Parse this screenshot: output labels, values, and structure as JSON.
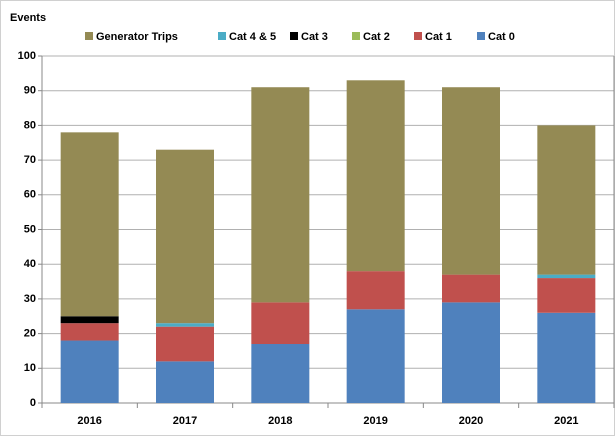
{
  "chart_data": {
    "type": "stacked_bar",
    "y_label": "Events",
    "categories": [
      "2016",
      "2017",
      "2018",
      "2019",
      "2020",
      "2021"
    ],
    "series": [
      {
        "name": "Generator Trips",
        "color": "#948a54",
        "values": [
          53,
          50,
          62,
          55,
          54,
          43
        ]
      },
      {
        "name": "Cat 4 & 5",
        "color": "#4bacc6",
        "values": [
          0,
          1,
          0,
          0,
          0,
          1
        ]
      },
      {
        "name": "Cat 3",
        "color": "#000000",
        "values": [
          2,
          0,
          0,
          0,
          0,
          0
        ]
      },
      {
        "name": "Cat 2",
        "color": "#9bbb59",
        "values": [
          0,
          0,
          0,
          0,
          0,
          0
        ]
      },
      {
        "name": "Cat 1",
        "color": "#c0504d",
        "values": [
          5,
          10,
          12,
          11,
          8,
          10
        ]
      },
      {
        "name": "Cat 0",
        "color": "#4f81bd",
        "values": [
          18,
          12,
          17,
          27,
          29,
          26
        ]
      }
    ],
    "ylim": [
      0,
      100
    ],
    "yticks": [
      0,
      10,
      20,
      30,
      40,
      50,
      60,
      70,
      80,
      90,
      100
    ],
    "grid": true,
    "legend": "top"
  }
}
